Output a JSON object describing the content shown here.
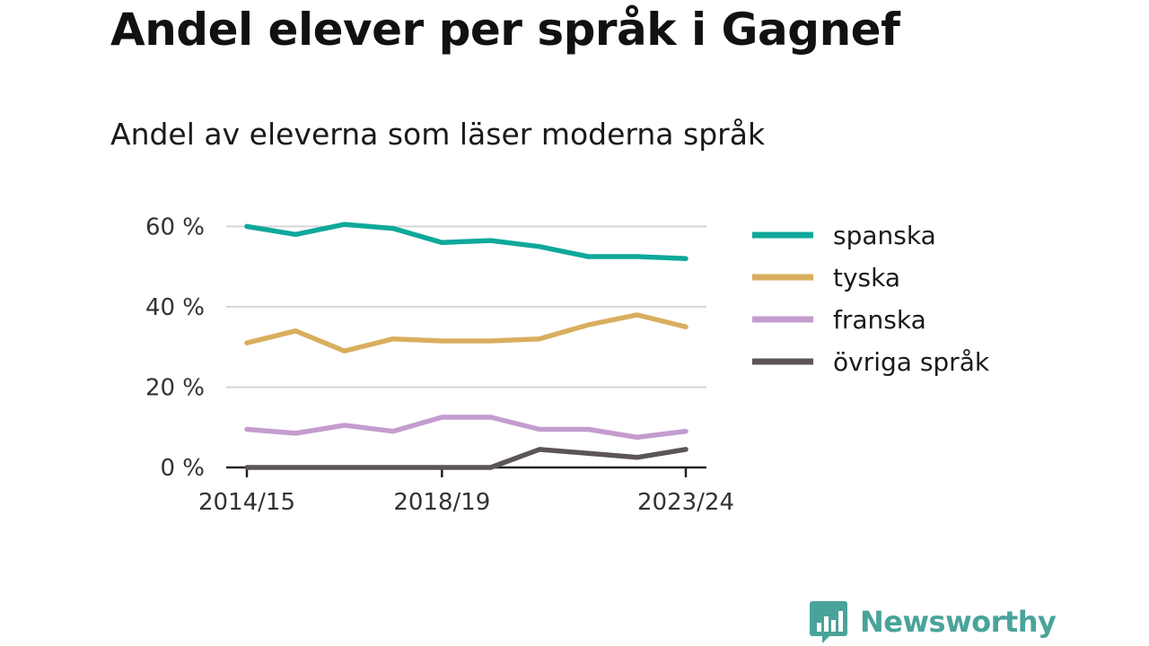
{
  "title": "Andel elever per språk i Gagnef",
  "subtitle": "Andel av eleverna som läser moderna språk",
  "brand": {
    "name": "Newsworthy",
    "color": "#4aa39a"
  },
  "chart_data": {
    "type": "line",
    "title": "Andel elever per språk i Gagnef",
    "subtitle": "Andel av eleverna som läser moderna språk",
    "x": [
      "2014/15",
      "2015/16",
      "2016/17",
      "2017/18",
      "2018/19",
      "2019/20",
      "2020/21",
      "2021/22",
      "2022/23",
      "2023/24"
    ],
    "x_tick_labels": [
      "2014/15",
      "2018/19",
      "2023/24"
    ],
    "y_ticks": [
      0,
      20,
      40,
      60
    ],
    "y_tick_labels": [
      "0 %",
      "20 %",
      "40 %",
      "60 %"
    ],
    "ylim": [
      0,
      65
    ],
    "grid": true,
    "legend_position": "right",
    "series": [
      {
        "name": "spanska",
        "color": "#0fa89b",
        "values": [
          60,
          58,
          60.5,
          59.5,
          56,
          56.5,
          55,
          52.5,
          52.5,
          52
        ]
      },
      {
        "name": "tyska",
        "color": "#d9ae5e",
        "values": [
          31,
          34,
          29,
          32,
          31.5,
          31.5,
          32,
          35.5,
          38,
          35
        ]
      },
      {
        "name": "franska",
        "color": "#c49ccf",
        "values": [
          9.5,
          8.5,
          10.5,
          9,
          12.5,
          12.5,
          9.5,
          9.5,
          7.5,
          9
        ]
      },
      {
        "name": "övriga språk",
        "color": "#5c5558",
        "values": [
          0,
          0,
          0,
          0,
          0,
          0,
          4.5,
          3.5,
          2.5,
          4.5
        ]
      }
    ]
  }
}
